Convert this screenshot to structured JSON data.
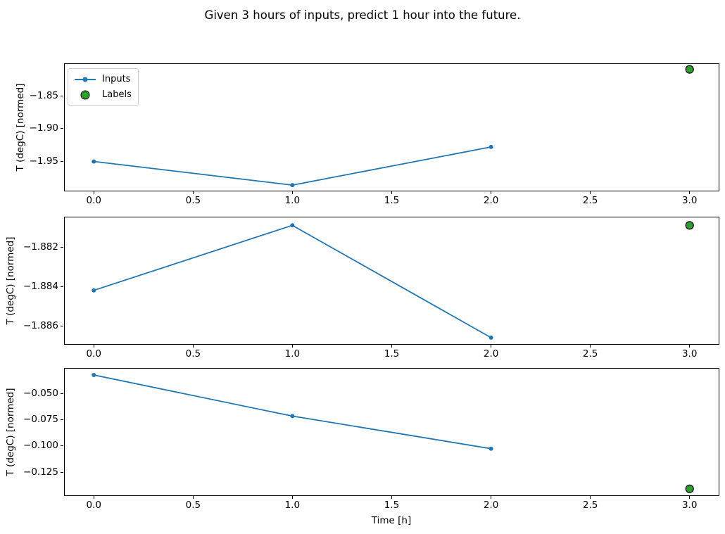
{
  "title": "Given 3 hours of inputs, predict 1 hour into the future.",
  "legend": {
    "items": [
      {
        "label": "Inputs"
      },
      {
        "label": "Labels"
      }
    ]
  },
  "chart_data": {
    "type": "line",
    "title": "Given 3 hours of inputs, predict 1 hour into the future.",
    "xlabel": "Time [h]",
    "ylabel": "T (degC) [normed]",
    "legend_entries": [
      "Inputs",
      "Labels"
    ],
    "legend_position": "upper left of first subplot",
    "grid": false,
    "colors": {
      "inputs_line": "#1f77b4",
      "labels_marker": "#2ca02c",
      "labels_marker_edge": "#000000",
      "axes": "#000000",
      "legend_border": "#cccccc"
    },
    "x": {
      "lim": [
        -0.15,
        3.15
      ],
      "ticks": [
        0,
        0.5,
        1,
        1.5,
        2,
        2.5,
        3
      ],
      "tick_labels": [
        "0.0",
        "0.5",
        "1.0",
        "1.5",
        "2.0",
        "2.5",
        "3.0"
      ]
    },
    "subplots": [
      {
        "ylabel": "T (degC) [normed]",
        "ylim": [
          -1.9955,
          -1.8008
        ],
        "yticks": [
          -1.85,
          -1.9,
          -1.95
        ],
        "ytick_labels": [
          "−1.85",
          "−1.90",
          "−1.95"
        ],
        "series": [
          {
            "name": "Inputs",
            "type": "line",
            "x": [
              0,
              1,
              2
            ],
            "y": [
              -1.95,
              -1.986,
              -1.928
            ]
          },
          {
            "name": "Labels",
            "type": "scatter",
            "x": [
              3
            ],
            "y": [
              -1.81
            ]
          }
        ]
      },
      {
        "ylabel": "T (degC) [normed]",
        "ylim": [
          -1.88696,
          -1.88046
        ],
        "yticks": [
          -1.882,
          -1.884,
          -1.886
        ],
        "ytick_labels": [
          "−1.882",
          "−1.884",
          "−1.886"
        ],
        "series": [
          {
            "name": "Inputs",
            "type": "line",
            "x": [
              0,
              1,
              2
            ],
            "y": [
              -1.8842,
              -1.8809,
              -1.8866
            ]
          },
          {
            "name": "Labels",
            "type": "scatter",
            "x": [
              3
            ],
            "y": [
              -1.8809
            ]
          }
        ]
      },
      {
        "ylabel": "T (degC) [normed]",
        "ylim": [
          -0.1478,
          -0.0259
        ],
        "yticks": [
          -0.05,
          -0.075,
          -0.1,
          -0.125
        ],
        "ytick_labels": [
          "−0.050",
          "−0.075",
          "−0.100",
          "−0.125"
        ],
        "series": [
          {
            "name": "Inputs",
            "type": "line",
            "x": [
              0,
              1,
              2
            ],
            "y": [
              -0.0326,
              -0.0717,
              -0.1027
            ]
          },
          {
            "name": "Labels",
            "type": "scatter",
            "x": [
              3
            ],
            "y": [
              -0.141
            ]
          }
        ]
      }
    ]
  }
}
